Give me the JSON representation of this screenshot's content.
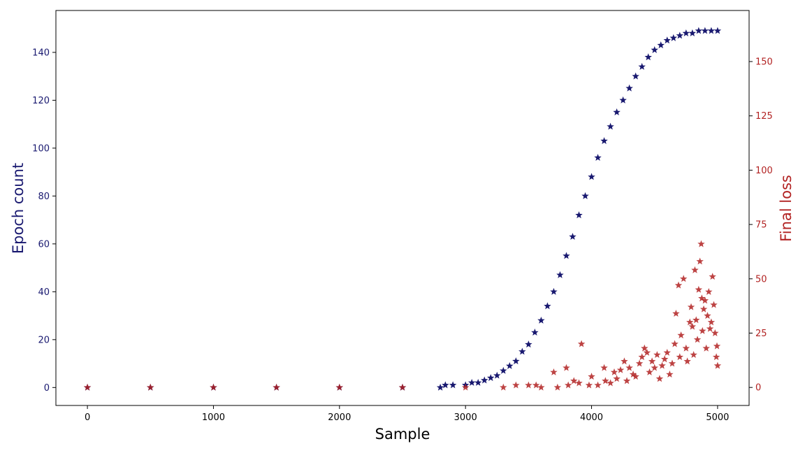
{
  "chart_data": {
    "type": "scatter",
    "xlabel": "Sample",
    "ylabel_left": "Epoch count",
    "ylabel_right": "Final loss",
    "xlim": [
      -250,
      5250
    ],
    "ylim_left": [
      -7.5,
      157.5
    ],
    "ylim_right": [
      -8.3,
      173.5
    ],
    "x_ticks": [
      "0",
      "1000",
      "2000",
      "3000",
      "4000",
      "5000"
    ],
    "y_left_ticks": [
      "0",
      "20",
      "40",
      "60",
      "80",
      "100",
      "120",
      "140"
    ],
    "y_right_ticks": [
      "0",
      "25",
      "50",
      "75",
      "100",
      "125",
      "150"
    ],
    "grid": false,
    "marker": "star",
    "colors": {
      "epoch": "#191970",
      "loss": "#b22222",
      "axes": "#000000"
    },
    "series": [
      {
        "name": "Epoch count",
        "axis": "left",
        "x": [
          0,
          500,
          1000,
          1500,
          2000,
          2500,
          2800,
          2840,
          2900,
          3000,
          3050,
          3100,
          3150,
          3200,
          3250,
          3300,
          3350,
          3400,
          3450,
          3500,
          3550,
          3600,
          3650,
          3700,
          3750,
          3800,
          3850,
          3900,
          3950,
          4000,
          4050,
          4100,
          4150,
          4200,
          4250,
          4300,
          4350,
          4400,
          4450,
          4500,
          4550,
          4600,
          4650,
          4700,
          4750,
          4800,
          4850,
          4900,
          4950,
          5000
        ],
        "y": [
          0,
          0,
          0,
          0,
          0,
          0,
          0,
          1,
          1,
          1,
          2,
          2,
          3,
          4,
          5,
          7,
          9,
          11,
          15,
          18,
          23,
          28,
          34,
          40,
          47,
          55,
          63,
          72,
          80,
          88,
          96,
          103,
          109,
          115,
          120,
          125,
          130,
          134,
          138,
          141,
          143,
          145,
          146,
          147,
          148,
          148,
          149,
          149,
          149,
          149
        ]
      },
      {
        "name": "Final loss",
        "axis": "right",
        "x": [
          0,
          500,
          1000,
          1500,
          2000,
          2500,
          3000,
          3300,
          3400,
          3500,
          3560,
          3600,
          3700,
          3730,
          3800,
          3815,
          3860,
          3900,
          3920,
          3980,
          4000,
          4050,
          4100,
          4110,
          4150,
          4180,
          4200,
          4230,
          4260,
          4280,
          4300,
          4330,
          4350,
          4380,
          4400,
          4420,
          4440,
          4460,
          4480,
          4500,
          4520,
          4540,
          4560,
          4580,
          4600,
          4620,
          4640,
          4660,
          4670,
          4690,
          4700,
          4710,
          4730,
          4750,
          4760,
          4780,
          4790,
          4800,
          4810,
          4820,
          4830,
          4840,
          4850,
          4860,
          4870,
          4875,
          4880,
          4890,
          4900,
          4910,
          4920,
          4930,
          4940,
          4950,
          4960,
          4970,
          4980,
          4990,
          4995,
          5000
        ],
        "y": [
          0,
          0,
          0,
          0,
          0,
          0,
          0,
          0,
          1,
          1,
          1,
          0,
          7,
          0,
          9,
          1,
          3,
          2,
          20,
          1,
          5,
          1,
          9,
          3,
          2,
          7,
          4,
          8,
          12,
          3,
          9,
          6,
          5,
          11,
          14,
          18,
          16,
          7,
          12,
          9,
          15,
          4,
          10,
          13,
          16,
          6,
          11,
          20,
          34,
          47,
          14,
          24,
          50,
          18,
          12,
          30,
          37,
          28,
          15,
          54,
          31,
          22,
          45,
          58,
          66,
          41,
          26,
          36,
          40,
          18,
          33,
          44,
          27,
          30,
          51,
          38,
          25,
          14,
          19,
          10
        ]
      }
    ]
  }
}
